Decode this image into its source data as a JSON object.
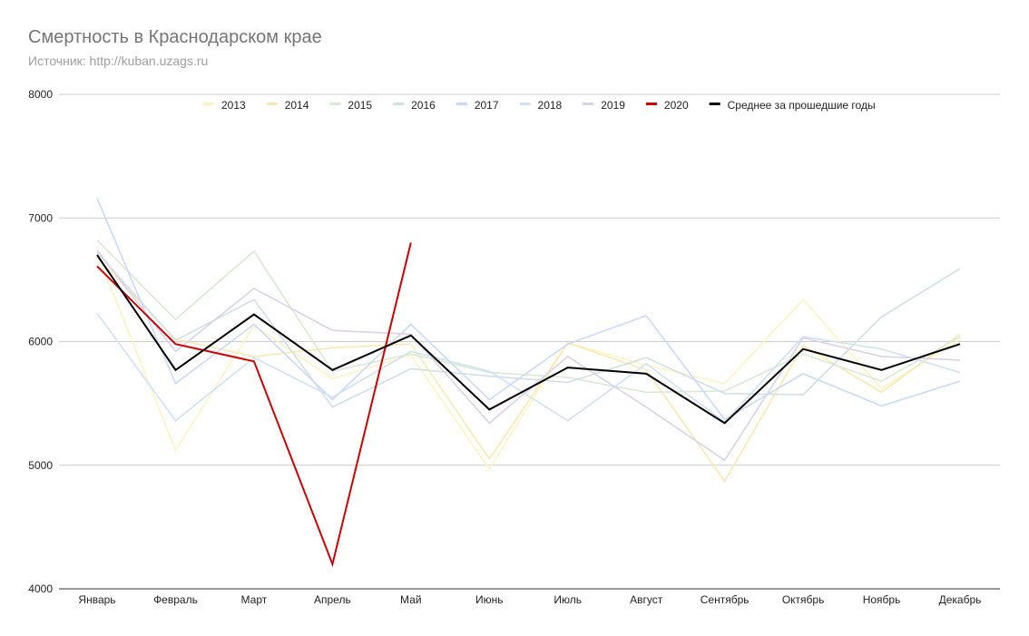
{
  "title": "Смертность в Краснодарском крае",
  "subtitle": "Источник: http://kuban.uzags.ru",
  "chart_data": {
    "type": "line",
    "title": "Смертность в Краснодарском крае",
    "subtitle": "Источник: http://kuban.uzags.ru",
    "xlabel": "",
    "ylabel": "",
    "ylim": [
      4000,
      8000
    ],
    "yticks": [
      4000,
      5000,
      6000,
      7000,
      8000
    ],
    "grid": true,
    "legend_position": "top",
    "categories": [
      "Январь",
      "Февраль",
      "Март",
      "Апрель",
      "Май",
      "Июнь",
      "Июль",
      "Август",
      "Сентябрь",
      "Октябрь",
      "Ноябрь",
      "Декабрь"
    ],
    "series": [
      {
        "name": "2013",
        "color": "#fff3c4",
        "values": [
          6720,
          5120,
          6130,
          5700,
          5890,
          4970,
          5990,
          5810,
          5660,
          6340,
          5620,
          6020
        ]
      },
      {
        "name": "2014",
        "color": "#fce8b2",
        "values": [
          6680,
          6020,
          5880,
          5950,
          5980,
          5050,
          5990,
          5770,
          4870,
          5970,
          5590,
          6060
        ]
      },
      {
        "name": "2015",
        "color": "#d9ead3",
        "values": [
          6820,
          6180,
          6730,
          5760,
          5900,
          5750,
          5710,
          5590,
          5600,
          5900,
          5680,
          6040
        ]
      },
      {
        "name": "2016",
        "color": "#d0e0e3",
        "values": [
          6720,
          6010,
          6340,
          5470,
          5780,
          5720,
          5670,
          5870,
          5580,
          5570,
          6200,
          6590
        ]
      },
      {
        "name": "2017",
        "color": "#c9daf8",
        "values": [
          7160,
          5660,
          6140,
          5530,
          6140,
          5530,
          5980,
          6210,
          5370,
          5740,
          5480,
          5680
        ]
      },
      {
        "name": "2018",
        "color": "#cfe2f3",
        "values": [
          6230,
          5360,
          5870,
          5550,
          5920,
          5760,
          5360,
          5820,
          5350,
          6040,
          5940,
          5750
        ]
      },
      {
        "name": "2019",
        "color": "#d9d2e9",
        "values": [
          6740,
          5920,
          6430,
          6090,
          6060,
          5340,
          5880,
          5470,
          5040,
          6030,
          5880,
          5850
        ]
      },
      {
        "name": "2020",
        "color": "#cc0000",
        "values": [
          6610,
          5980,
          5840,
          4200,
          6800,
          null,
          null,
          null,
          null,
          null,
          null,
          null
        ]
      },
      {
        "name": "Среднее за прошедшие годы",
        "color": "#000000",
        "values": [
          6700,
          5770,
          6220,
          5770,
          6050,
          5450,
          5790,
          5740,
          5340,
          5940,
          5770,
          5980
        ]
      }
    ]
  }
}
